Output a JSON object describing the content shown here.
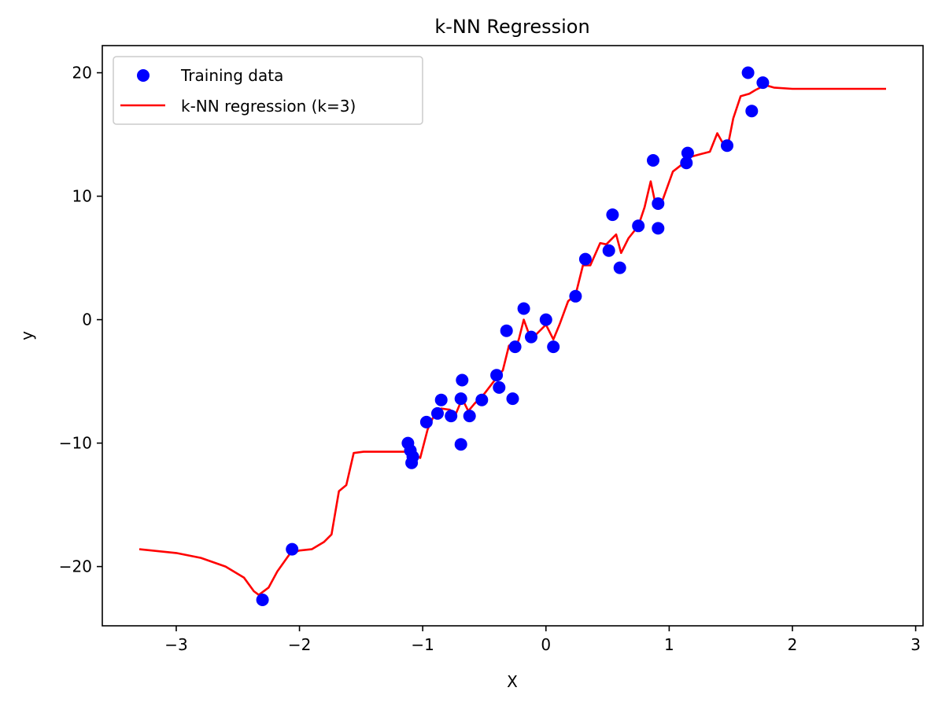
{
  "chart_data": {
    "type": "scatter",
    "title": "k-NN Regression",
    "xlabel": "X",
    "ylabel": "y",
    "xlim": [
      -3.6,
      3.06
    ],
    "ylim": [
      -24.8,
      22.2
    ],
    "xticks": [
      -3,
      -2,
      -1,
      0,
      1,
      2,
      3
    ],
    "xtick_labels": [
      "−3",
      "−2",
      "−1",
      "0",
      "1",
      "2",
      "3"
    ],
    "yticks": [
      -20,
      -10,
      0,
      10,
      20
    ],
    "ytick_labels": [
      "−20",
      "−10",
      "0",
      "10",
      "20"
    ],
    "grid": false,
    "legend_position": "top-left",
    "colors": {
      "points": "#0000ff",
      "line": "#ff0000"
    },
    "series": [
      {
        "name": "Training data",
        "kind": "scatter",
        "points": [
          [
            -2.3,
            -22.7
          ],
          [
            -2.06,
            -18.6
          ],
          [
            -1.12,
            -10.0
          ],
          [
            -1.1,
            -10.6
          ],
          [
            -1.08,
            -11.1
          ],
          [
            -1.09,
            -11.6
          ],
          [
            -0.97,
            -8.3
          ],
          [
            -0.88,
            -7.6
          ],
          [
            -0.85,
            -6.5
          ],
          [
            -0.77,
            -7.8
          ],
          [
            -0.69,
            -6.4
          ],
          [
            -0.68,
            -4.9
          ],
          [
            -0.69,
            -10.1
          ],
          [
            -0.62,
            -7.8
          ],
          [
            -0.52,
            -6.5
          ],
          [
            -0.4,
            -4.5
          ],
          [
            -0.38,
            -5.5
          ],
          [
            -0.32,
            -0.9
          ],
          [
            -0.27,
            -6.4
          ],
          [
            -0.25,
            -2.2
          ],
          [
            -0.18,
            0.9
          ],
          [
            -0.12,
            -1.4
          ],
          [
            0.0,
            0.0
          ],
          [
            0.06,
            -2.2
          ],
          [
            0.24,
            1.9
          ],
          [
            0.32,
            4.9
          ],
          [
            0.51,
            5.6
          ],
          [
            0.54,
            8.5
          ],
          [
            0.6,
            4.2
          ],
          [
            0.75,
            7.6
          ],
          [
            0.87,
            12.9
          ],
          [
            0.91,
            9.4
          ],
          [
            0.91,
            7.4
          ],
          [
            1.14,
            12.7
          ],
          [
            1.15,
            13.5
          ],
          [
            1.47,
            14.1
          ],
          [
            1.64,
            20.0
          ],
          [
            1.67,
            16.9
          ],
          [
            1.76,
            19.2
          ]
        ]
      },
      {
        "name": "k-NN regression (k=3)",
        "kind": "line",
        "points": [
          [
            -3.3,
            -18.6
          ],
          [
            -3.0,
            -18.9
          ],
          [
            -2.8,
            -19.3
          ],
          [
            -2.6,
            -20.0
          ],
          [
            -2.45,
            -20.9
          ],
          [
            -2.37,
            -22.0
          ],
          [
            -2.33,
            -22.3
          ],
          [
            -2.25,
            -21.7
          ],
          [
            -2.18,
            -20.4
          ],
          [
            -2.08,
            -19.0
          ],
          [
            -2.0,
            -18.7
          ],
          [
            -1.9,
            -18.6
          ],
          [
            -1.8,
            -18.0
          ],
          [
            -1.74,
            -17.4
          ],
          [
            -1.68,
            -13.9
          ],
          [
            -1.62,
            -13.4
          ],
          [
            -1.56,
            -10.8
          ],
          [
            -1.48,
            -10.7
          ],
          [
            -1.12,
            -10.7
          ],
          [
            -1.07,
            -10.9
          ],
          [
            -1.02,
            -11.2
          ],
          [
            -0.96,
            -8.9
          ],
          [
            -0.92,
            -8.0
          ],
          [
            -0.85,
            -7.2
          ],
          [
            -0.78,
            -7.3
          ],
          [
            -0.73,
            -7.6
          ],
          [
            -0.68,
            -6.4
          ],
          [
            -0.63,
            -7.4
          ],
          [
            -0.58,
            -6.8
          ],
          [
            -0.5,
            -6.0
          ],
          [
            -0.4,
            -4.7
          ],
          [
            -0.35,
            -4.1
          ],
          [
            -0.3,
            -2.1
          ],
          [
            -0.25,
            -2.4
          ],
          [
            -0.22,
            -1.6
          ],
          [
            -0.18,
            0.0
          ],
          [
            -0.14,
            -1.1
          ],
          [
            -0.09,
            -1.3
          ],
          [
            0.0,
            -0.4
          ],
          [
            0.06,
            -1.6
          ],
          [
            0.11,
            -0.4
          ],
          [
            0.18,
            1.5
          ],
          [
            0.24,
            2.0
          ],
          [
            0.3,
            4.4
          ],
          [
            0.36,
            4.4
          ],
          [
            0.44,
            6.2
          ],
          [
            0.49,
            6.1
          ],
          [
            0.52,
            6.4
          ],
          [
            0.57,
            6.9
          ],
          [
            0.61,
            5.4
          ],
          [
            0.67,
            6.6
          ],
          [
            0.75,
            7.6
          ],
          [
            0.8,
            9.1
          ],
          [
            0.85,
            11.2
          ],
          [
            0.89,
            9.3
          ],
          [
            0.94,
            9.5
          ],
          [
            1.03,
            12.0
          ],
          [
            1.12,
            12.7
          ],
          [
            1.18,
            13.2
          ],
          [
            1.25,
            13.4
          ],
          [
            1.33,
            13.6
          ],
          [
            1.39,
            15.1
          ],
          [
            1.43,
            14.4
          ],
          [
            1.48,
            14.3
          ],
          [
            1.52,
            16.3
          ],
          [
            1.58,
            18.1
          ],
          [
            1.65,
            18.3
          ],
          [
            1.7,
            18.6
          ],
          [
            1.78,
            19.0
          ],
          [
            1.85,
            18.8
          ],
          [
            2.0,
            18.7
          ],
          [
            2.4,
            18.7
          ],
          [
            2.76,
            18.7
          ]
        ]
      }
    ]
  }
}
